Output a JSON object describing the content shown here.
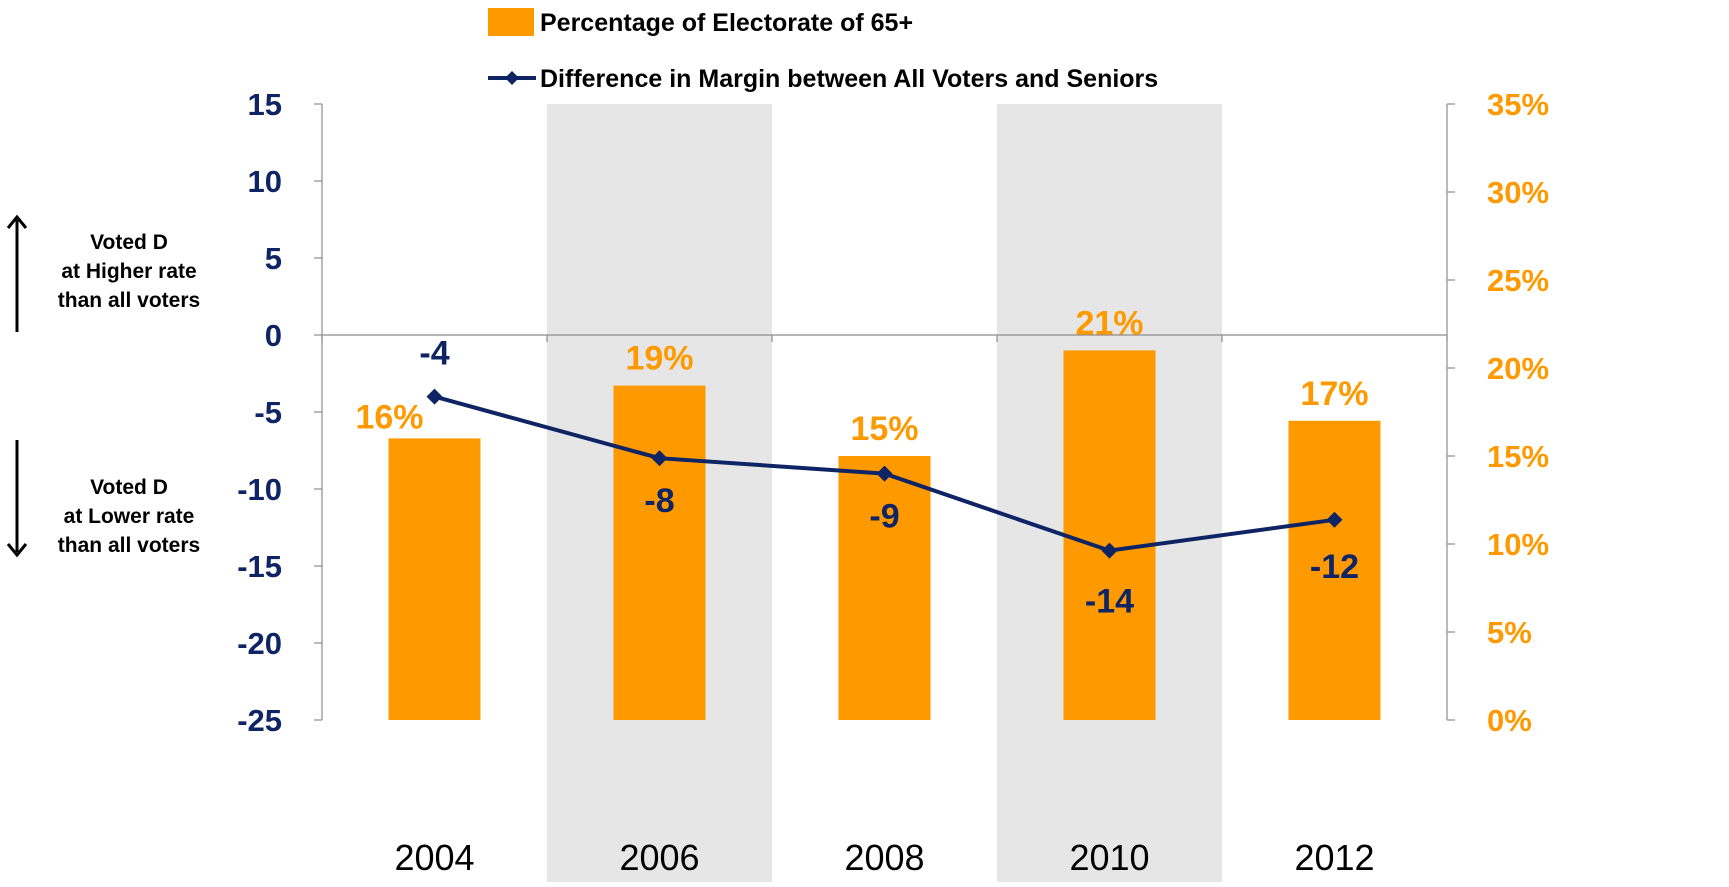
{
  "chart_data": {
    "type": "bar",
    "categories": [
      "2004",
      "2006",
      "2008",
      "2010",
      "2012"
    ],
    "series": [
      {
        "name": "Percentage of Electorate of 65+",
        "type": "bar",
        "axis": "right",
        "values": [
          16,
          19,
          15,
          21,
          17
        ],
        "labels": [
          "16%",
          "19%",
          "15%",
          "21%",
          "17%"
        ],
        "color": "#FF9900"
      },
      {
        "name": "Difference in Margin between All Voters and Seniors",
        "type": "line",
        "axis": "left",
        "values": [
          -4,
          -8,
          -9,
          -14,
          -12
        ],
        "labels": [
          "-4",
          "-8",
          "-9",
          "-14",
          "-12"
        ],
        "color": "#0F2464"
      }
    ],
    "left_axis": {
      "ylim": [
        -25,
        15
      ],
      "ticks": [
        15,
        10,
        5,
        0,
        -5,
        -10,
        -15,
        -20,
        -25
      ],
      "tick_labels": [
        "15",
        "10",
        "5",
        "0",
        "-5",
        "-10",
        "-15",
        "-20",
        "-25"
      ],
      "color": "#0F2464"
    },
    "right_axis": {
      "ylim": [
        0,
        35
      ],
      "ticks": [
        35,
        30,
        25,
        20,
        15,
        10,
        5,
        0
      ],
      "tick_labels": [
        "35%",
        "30%",
        "25%",
        "20%",
        "15%",
        "10%",
        "5%",
        "0%"
      ],
      "color": "#FF9900"
    },
    "shaded_categories": [
      "2006",
      "2010"
    ],
    "shade_color": "#E6E6E6",
    "legend_placement": "top",
    "grid": false
  },
  "annotations": {
    "upper": {
      "line1": "Voted D",
      "line2": "at Higher rate",
      "line3": "than all voters"
    },
    "lower": {
      "line1": "Voted D",
      "line2": "at Lower rate",
      "line3": "than all voters"
    }
  }
}
